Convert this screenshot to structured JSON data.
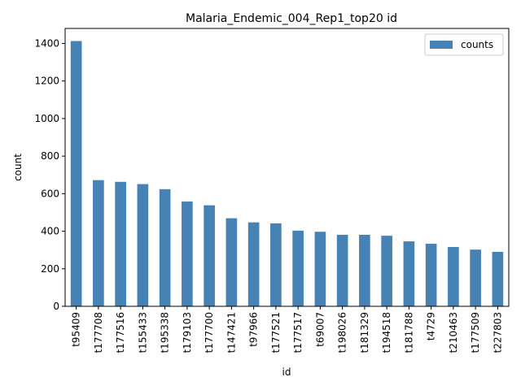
{
  "chart_data": {
    "type": "bar",
    "title": "Malaria_Endemic_004_Rep1_top20 id",
    "xlabel": "id",
    "ylabel": "count",
    "ylim": [
      0,
      1480
    ],
    "yticks": [
      0,
      200,
      400,
      600,
      800,
      1000,
      1200,
      1400
    ],
    "grid": false,
    "legend_position": "top-right",
    "categories": [
      "t95409",
      "t177708",
      "t177516",
      "t155433",
      "t195338",
      "t179103",
      "t177700",
      "t147421",
      "t97966",
      "t177521",
      "t177517",
      "t69007",
      "t198026",
      "t181329",
      "t194518",
      "t181788",
      "t4729",
      "t210463",
      "t177509",
      "t227803"
    ],
    "series": [
      {
        "name": "counts",
        "color": "#4682b4",
        "values": [
          1413,
          672,
          663,
          651,
          624,
          558,
          538,
          469,
          447,
          442,
          403,
          397,
          381,
          381,
          376,
          346,
          333,
          316,
          302,
          290
        ]
      }
    ]
  }
}
